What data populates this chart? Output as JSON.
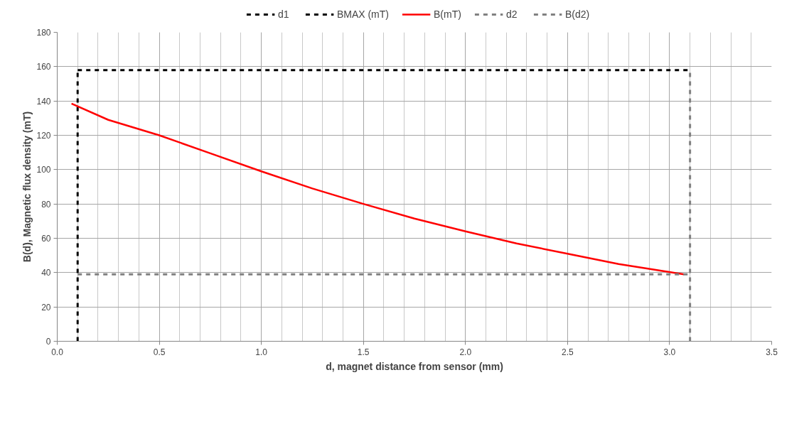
{
  "chart_data": {
    "type": "line",
    "xlabel": "d, magnet distance from sensor (mm)",
    "ylabel": "B(d), Magnetic flux density (mT)",
    "xlim": [
      0,
      3.5
    ],
    "xticks": [
      {
        "value": 0,
        "label": "0.0"
      },
      0.5,
      {
        "value": 1,
        "label": "1.0"
      },
      1.5,
      {
        "value": 2,
        "label": "2.0"
      },
      2.5,
      {
        "value": 3,
        "label": "3.0"
      },
      3.5
    ],
    "ylim": [
      0,
      180
    ],
    "yticks": [
      0,
      20,
      40,
      60,
      80,
      100,
      120,
      140,
      160,
      180
    ],
    "grid": true,
    "legend": "top",
    "marker": "none",
    "series": [
      {
        "name": "d1",
        "color": "#000000",
        "line_style": "dashed",
        "x": [
          0.1,
          0.1
        ],
        "values": [
          0,
          158
        ]
      },
      {
        "name": "BMAX (mT)",
        "color": "#000000",
        "line_style": "dashed",
        "x": [
          0.1,
          3.1
        ],
        "values": [
          158,
          158
        ]
      },
      {
        "name": "B(mT)",
        "color": "#ff0000",
        "line_style": "solid",
        "x": [
          0.07,
          0.25,
          0.5,
          0.75,
          1.0,
          1.25,
          1.5,
          1.75,
          2.0,
          2.25,
          2.5,
          2.75,
          3.07
        ],
        "values": [
          138.5,
          129,
          120,
          109.5,
          99,
          89,
          80,
          71.5,
          64,
          57,
          51,
          45,
          39
        ]
      },
      {
        "name": "d2",
        "color": "#808080",
        "line_style": "dashed",
        "x": [
          3.1,
          3.1
        ],
        "values": [
          0,
          158
        ]
      },
      {
        "name": "B(d2)",
        "color": "#808080",
        "line_style": "dashed",
        "x": [
          0.1,
          3.1
        ],
        "values": [
          39,
          39
        ]
      }
    ]
  }
}
